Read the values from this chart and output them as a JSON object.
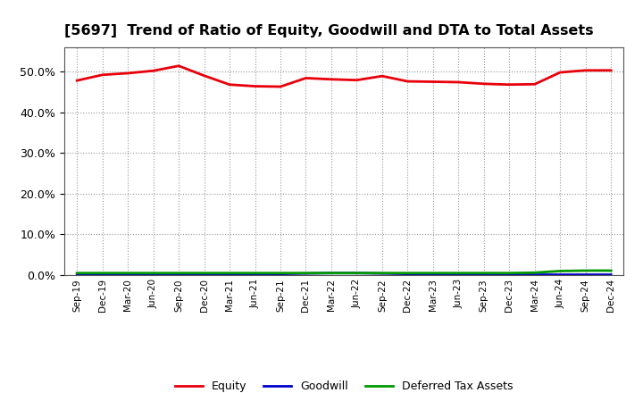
{
  "title": "[5697]  Trend of Ratio of Equity, Goodwill and DTA to Total Assets",
  "x_labels": [
    "Sep-19",
    "Dec-19",
    "Mar-20",
    "Jun-20",
    "Sep-20",
    "Dec-20",
    "Mar-21",
    "Jun-21",
    "Sep-21",
    "Dec-21",
    "Mar-22",
    "Jun-22",
    "Sep-22",
    "Dec-22",
    "Mar-23",
    "Jun-23",
    "Sep-23",
    "Dec-23",
    "Mar-24",
    "Jun-24",
    "Sep-24",
    "Dec-24"
  ],
  "equity": [
    0.478,
    0.492,
    0.496,
    0.502,
    0.514,
    0.49,
    0.468,
    0.464,
    0.463,
    0.484,
    0.481,
    0.479,
    0.489,
    0.476,
    0.475,
    0.474,
    0.47,
    0.468,
    0.469,
    0.498,
    0.503,
    0.503
  ],
  "goodwill": [
    0.003,
    0.003,
    0.003,
    0.003,
    0.003,
    0.003,
    0.003,
    0.003,
    0.003,
    0.004,
    0.005,
    0.005,
    0.004,
    0.003,
    0.002,
    0.001,
    0.001,
    0.001,
    0.001,
    0.001,
    0.001,
    0.001
  ],
  "dta": [
    0.005,
    0.005,
    0.005,
    0.005,
    0.005,
    0.005,
    0.005,
    0.005,
    0.005,
    0.005,
    0.005,
    0.005,
    0.005,
    0.005,
    0.005,
    0.005,
    0.005,
    0.005,
    0.006,
    0.01,
    0.011,
    0.011
  ],
  "equity_color": "#e8000a",
  "goodwill_color": "#0000cc",
  "dta_color": "#009900",
  "bg_color": "#ffffff",
  "plot_bg_color": "#ffffff",
  "ylim": [
    0.0,
    0.56
  ],
  "yticks": [
    0.0,
    0.1,
    0.2,
    0.3,
    0.4,
    0.5
  ],
  "grid_color": "#999999",
  "title_fontsize": 11.5,
  "legend_labels": [
    "Equity",
    "Goodwill",
    "Deferred Tax Assets"
  ],
  "line_width": 2.0
}
